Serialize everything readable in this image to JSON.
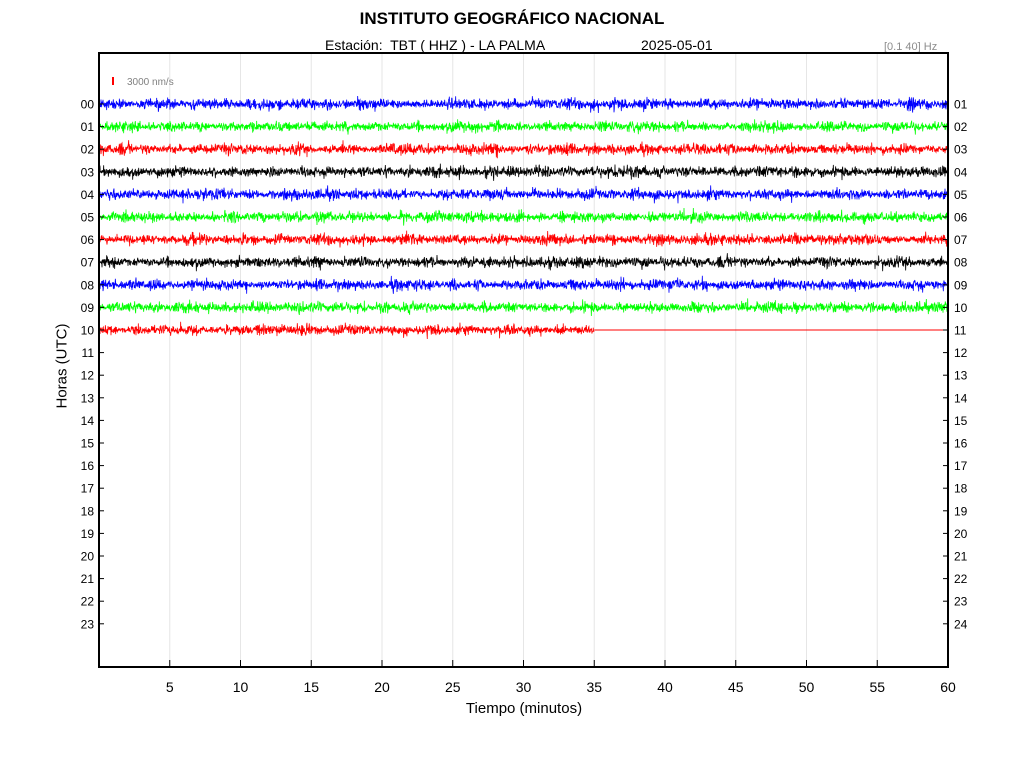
{
  "header": {
    "title": "INSTITUTO GEOGRÁFICO NACIONAL",
    "station_label": "Estación:  TBT ( HHZ ) - LA PALMA",
    "date": "2025-05-01",
    "filter": "[0.1 40] Hz"
  },
  "chart_data": {
    "type": "line",
    "title": "INSTITUTO GEOGRÁFICO NACIONAL",
    "xlabel": "Tiempo (minutos)",
    "ylabel": "Horas (UTC)",
    "xlim": [
      0,
      60
    ],
    "x_ticks": [
      "5",
      "10",
      "15",
      "20",
      "25",
      "30",
      "35",
      "40",
      "45",
      "50",
      "55",
      "60"
    ],
    "y_ticks_left": [
      "00",
      "01",
      "02",
      "03",
      "04",
      "05",
      "06",
      "07",
      "08",
      "09",
      "10",
      "11",
      "12",
      "13",
      "14",
      "15",
      "16",
      "17",
      "18",
      "19",
      "20",
      "21",
      "22",
      "23"
    ],
    "y_ticks_right": [
      "01",
      "02",
      "03",
      "04",
      "05",
      "06",
      "07",
      "08",
      "09",
      "10",
      "11",
      "12",
      "13",
      "14",
      "15",
      "16",
      "17",
      "18",
      "19",
      "20",
      "21",
      "22",
      "23",
      "24"
    ],
    "scale_label": "3000 nm/s",
    "scale_color": "#ff0000",
    "grid": true,
    "trace_colors": [
      "#0000ff",
      "#00ff00",
      "#ff0000",
      "#000000"
    ],
    "series": [
      {
        "hour": 0,
        "color": "#0000ff",
        "data_until_minute": 60
      },
      {
        "hour": 1,
        "color": "#00ff00",
        "data_until_minute": 60
      },
      {
        "hour": 2,
        "color": "#ff0000",
        "data_until_minute": 60
      },
      {
        "hour": 3,
        "color": "#000000",
        "data_until_minute": 60
      },
      {
        "hour": 4,
        "color": "#0000ff",
        "data_until_minute": 60
      },
      {
        "hour": 5,
        "color": "#00ff00",
        "data_until_minute": 60
      },
      {
        "hour": 6,
        "color": "#ff0000",
        "data_until_minute": 60
      },
      {
        "hour": 7,
        "color": "#000000",
        "data_until_minute": 60
      },
      {
        "hour": 8,
        "color": "#0000ff",
        "data_until_minute": 60
      },
      {
        "hour": 9,
        "color": "#00ff00",
        "data_until_minute": 60
      },
      {
        "hour": 10,
        "color": "#ff0000",
        "data_until_minute": 35
      }
    ]
  }
}
